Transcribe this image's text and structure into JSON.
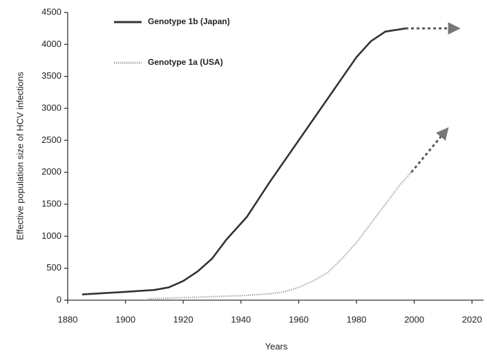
{
  "chart_data": {
    "type": "line",
    "x_label": "Years",
    "y_label": "Effective population size of HCV infections",
    "xlim": [
      1880,
      2024
    ],
    "xticks": [
      1880,
      1900,
      1920,
      1940,
      1960,
      1980,
      2000,
      2020
    ],
    "ylim": [
      0,
      4500
    ],
    "yticks": [
      0,
      500,
      1000,
      1500,
      2000,
      2500,
      3000,
      3500,
      4000,
      4500
    ],
    "grid": false,
    "series": [
      {
        "name": "Genotype 1b (Japan)",
        "color": "#333333",
        "style": "solid",
        "x": [
          1885,
          1900,
          1910,
          1915,
          1920,
          1925,
          1930,
          1935,
          1942,
          1950,
          1960,
          1970,
          1980,
          1985,
          1990,
          1997
        ],
        "values": [
          90,
          130,
          160,
          200,
          300,
          450,
          650,
          950,
          1300,
          1850,
          2500,
          3150,
          3800,
          4050,
          4200,
          4250
        ],
        "projection_x": [
          1997,
          2013
        ],
        "projection_values": [
          4250,
          4250
        ]
      },
      {
        "name": "Genotype 1a (USA)",
        "color": "#aaaaaa",
        "style": "dotted",
        "x": [
          1908,
          1920,
          1930,
          1940,
          1950,
          1955,
          1960,
          1965,
          1970,
          1975,
          1980,
          1985,
          1990,
          1995,
          1999
        ],
        "values": [
          20,
          40,
          55,
          70,
          100,
          130,
          200,
          300,
          430,
          650,
          900,
          1200,
          1500,
          1800,
          2000
        ],
        "projection_x": [
          1999,
          2010
        ],
        "projection_values": [
          2000,
          2600
        ]
      }
    ]
  }
}
